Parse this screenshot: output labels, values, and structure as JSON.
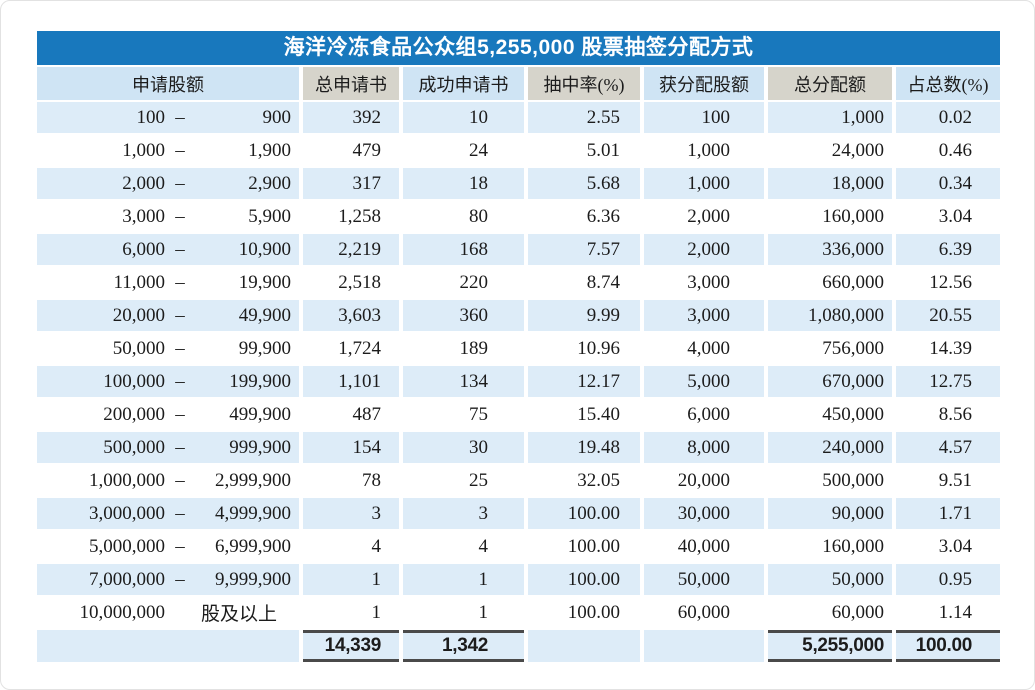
{
  "title": "海洋冷冻食品公众组5,255,000 股票抽签分配方式",
  "colors": {
    "title_bar": "#1878bd",
    "header_blue": "#cfe4f4",
    "header_gray": "#d6d4cb",
    "stripe_blue": "#ddecf8",
    "totals_rule": "#4a4a4a"
  },
  "table": {
    "columns": [
      {
        "label": "申请股额",
        "tone": "blue"
      },
      {
        "label": "总申请书",
        "tone": "gray"
      },
      {
        "label": "成功申请书",
        "tone": "blue"
      },
      {
        "label": "抽中率(%)",
        "tone": "gray"
      },
      {
        "label": "获分配股额",
        "tone": "blue"
      },
      {
        "label": "总分配额",
        "tone": "gray"
      },
      {
        "label": "占总数(%)",
        "tone": "blue"
      }
    ],
    "rows": [
      {
        "low": "100",
        "sep": "–",
        "high": "900",
        "apps": "392",
        "success": "10",
        "rate": "2.55",
        "alloc": "100",
        "total": "1,000",
        "pct": "0.02"
      },
      {
        "low": "1,000",
        "sep": "–",
        "high": "1,900",
        "apps": "479",
        "success": "24",
        "rate": "5.01",
        "alloc": "1,000",
        "total": "24,000",
        "pct": "0.46"
      },
      {
        "low": "2,000",
        "sep": "–",
        "high": "2,900",
        "apps": "317",
        "success": "18",
        "rate": "5.68",
        "alloc": "1,000",
        "total": "18,000",
        "pct": "0.34"
      },
      {
        "low": "3,000",
        "sep": "–",
        "high": "5,900",
        "apps": "1,258",
        "success": "80",
        "rate": "6.36",
        "alloc": "2,000",
        "total": "160,000",
        "pct": "3.04"
      },
      {
        "low": "6,000",
        "sep": "–",
        "high": "10,900",
        "apps": "2,219",
        "success": "168",
        "rate": "7.57",
        "alloc": "2,000",
        "total": "336,000",
        "pct": "6.39"
      },
      {
        "low": "11,000",
        "sep": "–",
        "high": "19,900",
        "apps": "2,518",
        "success": "220",
        "rate": "8.74",
        "alloc": "3,000",
        "total": "660,000",
        "pct": "12.56"
      },
      {
        "low": "20,000",
        "sep": "–",
        "high": "49,900",
        "apps": "3,603",
        "success": "360",
        "rate": "9.99",
        "alloc": "3,000",
        "total": "1,080,000",
        "pct": "20.55"
      },
      {
        "low": "50,000",
        "sep": "–",
        "high": "99,900",
        "apps": "1,724",
        "success": "189",
        "rate": "10.96",
        "alloc": "4,000",
        "total": "756,000",
        "pct": "14.39"
      },
      {
        "low": "100,000",
        "sep": "–",
        "high": "199,900",
        "apps": "1,101",
        "success": "134",
        "rate": "12.17",
        "alloc": "5,000",
        "total": "670,000",
        "pct": "12.75"
      },
      {
        "low": "200,000",
        "sep": "–",
        "high": "499,900",
        "apps": "487",
        "success": "75",
        "rate": "15.40",
        "alloc": "6,000",
        "total": "450,000",
        "pct": "8.56"
      },
      {
        "low": "500,000",
        "sep": "–",
        "high": "999,900",
        "apps": "154",
        "success": "30",
        "rate": "19.48",
        "alloc": "8,000",
        "total": "240,000",
        "pct": "4.57"
      },
      {
        "low": "1,000,000",
        "sep": "–",
        "high": "2,999,900",
        "apps": "78",
        "success": "25",
        "rate": "32.05",
        "alloc": "20,000",
        "total": "500,000",
        "pct": "9.51"
      },
      {
        "low": "3,000,000",
        "sep": "–",
        "high": "4,999,900",
        "apps": "3",
        "success": "3",
        "rate": "100.00",
        "alloc": "30,000",
        "total": "90,000",
        "pct": "1.71"
      },
      {
        "low": "5,000,000",
        "sep": "–",
        "high": "6,999,900",
        "apps": "4",
        "success": "4",
        "rate": "100.00",
        "alloc": "40,000",
        "total": "160,000",
        "pct": "3.04"
      },
      {
        "low": "7,000,000",
        "sep": "–",
        "high": "9,999,900",
        "apps": "1",
        "success": "1",
        "rate": "100.00",
        "alloc": "50,000",
        "total": "50,000",
        "pct": "0.95"
      },
      {
        "low": "10,000,000",
        "sep": "",
        "high": "股及以上",
        "apps": "1",
        "success": "1",
        "rate": "100.00",
        "alloc": "60,000",
        "total": "60,000",
        "pct": "1.14"
      }
    ],
    "totals": {
      "apps": "14,339",
      "success": "1,342",
      "total": "5,255,000",
      "pct": "100.00"
    }
  }
}
